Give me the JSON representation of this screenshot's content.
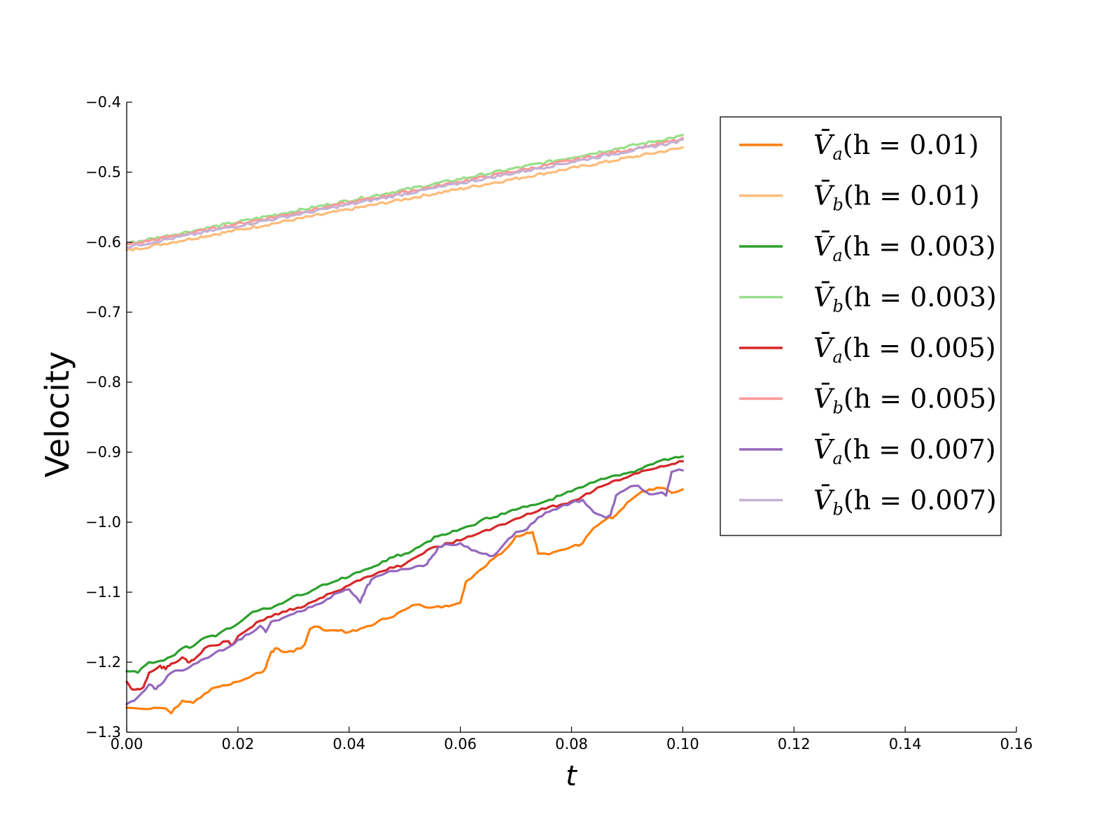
{
  "chart_data": {
    "type": "line",
    "xlabel": "t",
    "ylabel": "Velocity",
    "xlim": [
      0.0,
      0.16
    ],
    "ylim": [
      -1.3,
      -0.4
    ],
    "xticks": [
      "0.00",
      "0.02",
      "0.04",
      "0.06",
      "0.08",
      "0.10",
      "0.12",
      "0.14",
      "0.16"
    ],
    "yticks": [
      "−1.3",
      "−1.2",
      "−1.1",
      "−1.0",
      "−0.9",
      "−0.8",
      "−0.7",
      "−0.6",
      "−0.5",
      "−0.4"
    ],
    "grid": false,
    "legend_position": "top-right",
    "series": [
      {
        "name": "V̄a(h = 0.01)",
        "sym": "V̄",
        "sub": "a",
        "arg": "(h = 0.01)",
        "color": "#ff7f0e",
        "x": [
          0.0,
          0.004,
          0.007,
          0.008,
          0.01,
          0.012,
          0.014,
          0.016,
          0.018,
          0.02,
          0.022,
          0.024,
          0.025,
          0.026,
          0.027,
          0.028,
          0.03,
          0.032,
          0.033,
          0.034,
          0.036,
          0.038,
          0.04,
          0.042,
          0.044,
          0.046,
          0.048,
          0.05,
          0.052,
          0.054,
          0.056,
          0.058,
          0.06,
          0.061,
          0.062,
          0.064,
          0.066,
          0.068,
          0.07,
          0.072,
          0.073,
          0.074,
          0.076,
          0.078,
          0.08,
          0.082,
          0.084,
          0.086,
          0.088,
          0.09,
          0.092,
          0.094,
          0.096,
          0.098,
          0.1
        ],
        "values": [
          -1.265,
          -1.267,
          -1.266,
          -1.273,
          -1.255,
          -1.258,
          -1.245,
          -1.236,
          -1.233,
          -1.228,
          -1.222,
          -1.215,
          -1.208,
          -1.185,
          -1.18,
          -1.185,
          -1.185,
          -1.175,
          -1.152,
          -1.149,
          -1.155,
          -1.155,
          -1.157,
          -1.152,
          -1.148,
          -1.138,
          -1.135,
          -1.125,
          -1.118,
          -1.122,
          -1.12,
          -1.12,
          -1.115,
          -1.085,
          -1.08,
          -1.066,
          -1.052,
          -1.04,
          -1.02,
          -1.015,
          -1.014,
          -1.045,
          -1.046,
          -1.04,
          -1.035,
          -1.03,
          -1.008,
          -0.997,
          -0.99,
          -0.972,
          -0.96,
          -0.953,
          -0.951,
          -0.958,
          -0.953
        ]
      },
      {
        "name": "V̄b(h = 0.01)",
        "sym": "V̄",
        "sub": "b",
        "arg": "(h = 0.01)",
        "color": "#ffbb78",
        "x": [
          0.0,
          0.1
        ],
        "values": [
          -0.612,
          -0.465
        ]
      },
      {
        "name": "V̄a(h = 0.003)",
        "sym": "V̄",
        "sub": "a",
        "arg": "(h = 0.003)",
        "color": "#2ca02c",
        "x": [
          0.0,
          0.002,
          0.004,
          0.006,
          0.008,
          0.01,
          0.012,
          0.014,
          0.016,
          0.018,
          0.02,
          0.022,
          0.024,
          0.026,
          0.028,
          0.03,
          0.032,
          0.034,
          0.036,
          0.038,
          0.04,
          0.042,
          0.044,
          0.046,
          0.048,
          0.05,
          0.052,
          0.054,
          0.056,
          0.058,
          0.06,
          0.062,
          0.064,
          0.066,
          0.068,
          0.07,
          0.072,
          0.074,
          0.076,
          0.078,
          0.08,
          0.082,
          0.084,
          0.086,
          0.088,
          0.09,
          0.092,
          0.094,
          0.096,
          0.098,
          0.1
        ],
        "values": [
          -1.213,
          -1.215,
          -1.2,
          -1.198,
          -1.192,
          -1.18,
          -1.177,
          -1.165,
          -1.163,
          -1.152,
          -1.145,
          -1.132,
          -1.125,
          -1.123,
          -1.116,
          -1.106,
          -1.103,
          -1.095,
          -1.089,
          -1.083,
          -1.078,
          -1.071,
          -1.065,
          -1.056,
          -1.05,
          -1.045,
          -1.037,
          -1.028,
          -1.02,
          -1.016,
          -1.01,
          -1.005,
          -0.996,
          -0.993,
          -0.988,
          -0.982,
          -0.978,
          -0.974,
          -0.968,
          -0.962,
          -0.956,
          -0.95,
          -0.943,
          -0.938,
          -0.933,
          -0.93,
          -0.925,
          -0.918,
          -0.912,
          -0.909,
          -0.906
        ]
      },
      {
        "name": "V̄b(h = 0.003)",
        "sym": "V̄",
        "sub": "b",
        "arg": "(h = 0.003)",
        "color": "#98df8a",
        "x": [
          0.0,
          0.1
        ],
        "values": [
          -0.602,
          -0.448
        ]
      },
      {
        "name": "V̄a(h = 0.005)",
        "sym": "V̄",
        "sub": "a",
        "arg": "(h = 0.005)",
        "color": "#d62728",
        "x": [
          0.0,
          0.001,
          0.002,
          0.003,
          0.004,
          0.006,
          0.007,
          0.008,
          0.01,
          0.011,
          0.012,
          0.014,
          0.016,
          0.018,
          0.019,
          0.02,
          0.022,
          0.024,
          0.026,
          0.028,
          0.03,
          0.032,
          0.034,
          0.036,
          0.038,
          0.04,
          0.042,
          0.044,
          0.046,
          0.048,
          0.05,
          0.052,
          0.054,
          0.056,
          0.058,
          0.06,
          0.062,
          0.064,
          0.066,
          0.068,
          0.07,
          0.072,
          0.074,
          0.076,
          0.078,
          0.08,
          0.082,
          0.084,
          0.086,
          0.088,
          0.09,
          0.092,
          0.094,
          0.096,
          0.098,
          0.1
        ],
        "values": [
          -1.228,
          -1.239,
          -1.238,
          -1.236,
          -1.215,
          -1.205,
          -1.21,
          -1.202,
          -1.193,
          -1.2,
          -1.197,
          -1.18,
          -1.176,
          -1.17,
          -1.175,
          -1.163,
          -1.152,
          -1.141,
          -1.135,
          -1.128,
          -1.125,
          -1.12,
          -1.112,
          -1.103,
          -1.098,
          -1.09,
          -1.083,
          -1.077,
          -1.07,
          -1.065,
          -1.06,
          -1.05,
          -1.04,
          -1.035,
          -1.03,
          -1.026,
          -1.02,
          -1.013,
          -1.008,
          -1.003,
          -0.995,
          -0.988,
          -0.984,
          -0.978,
          -0.975,
          -0.97,
          -0.963,
          -0.955,
          -0.947,
          -0.94,
          -0.936,
          -0.93,
          -0.925,
          -0.92,
          -0.917,
          -0.913
        ]
      },
      {
        "name": "V̄b(h = 0.005)",
        "sym": "V̄",
        "sub": "b",
        "arg": "(h = 0.005)",
        "color": "#ff9896",
        "x": [
          0.0,
          0.1
        ],
        "values": [
          -0.604,
          -0.453
        ]
      },
      {
        "name": "V̄a(h = 0.007)",
        "sym": "V̄",
        "sub": "a",
        "arg": "(h = 0.007)",
        "color": "#9467bd",
        "x": [
          0.0,
          0.002,
          0.004,
          0.005,
          0.006,
          0.008,
          0.01,
          0.012,
          0.014,
          0.016,
          0.018,
          0.02,
          0.022,
          0.024,
          0.025,
          0.026,
          0.028,
          0.03,
          0.032,
          0.034,
          0.036,
          0.038,
          0.04,
          0.042,
          0.043,
          0.044,
          0.046,
          0.048,
          0.05,
          0.052,
          0.054,
          0.055,
          0.056,
          0.058,
          0.06,
          0.062,
          0.064,
          0.066,
          0.068,
          0.07,
          0.072,
          0.074,
          0.076,
          0.078,
          0.08,
          0.082,
          0.084,
          0.086,
          0.087,
          0.088,
          0.09,
          0.092,
          0.094,
          0.096,
          0.097,
          0.098,
          0.1
        ],
        "values": [
          -1.26,
          -1.25,
          -1.232,
          -1.238,
          -1.233,
          -1.215,
          -1.212,
          -1.203,
          -1.195,
          -1.186,
          -1.18,
          -1.168,
          -1.16,
          -1.148,
          -1.157,
          -1.142,
          -1.137,
          -1.131,
          -1.126,
          -1.118,
          -1.11,
          -1.101,
          -1.096,
          -1.115,
          -1.095,
          -1.082,
          -1.075,
          -1.07,
          -1.067,
          -1.063,
          -1.06,
          -1.048,
          -1.036,
          -1.032,
          -1.03,
          -1.04,
          -1.045,
          -1.048,
          -1.03,
          -1.014,
          -1.01,
          -0.993,
          -0.985,
          -0.978,
          -0.972,
          -0.968,
          -0.986,
          -0.993,
          -0.99,
          -0.962,
          -0.952,
          -0.948,
          -0.96,
          -0.958,
          -0.962,
          -0.928,
          -0.926
        ]
      },
      {
        "name": "V̄b(h = 0.007)",
        "sym": "V̄",
        "sub": "b",
        "arg": "(h = 0.007)",
        "color": "#c5b0d5",
        "x": [
          0.0,
          0.1
        ],
        "values": [
          -0.607,
          -0.455
        ]
      }
    ]
  }
}
